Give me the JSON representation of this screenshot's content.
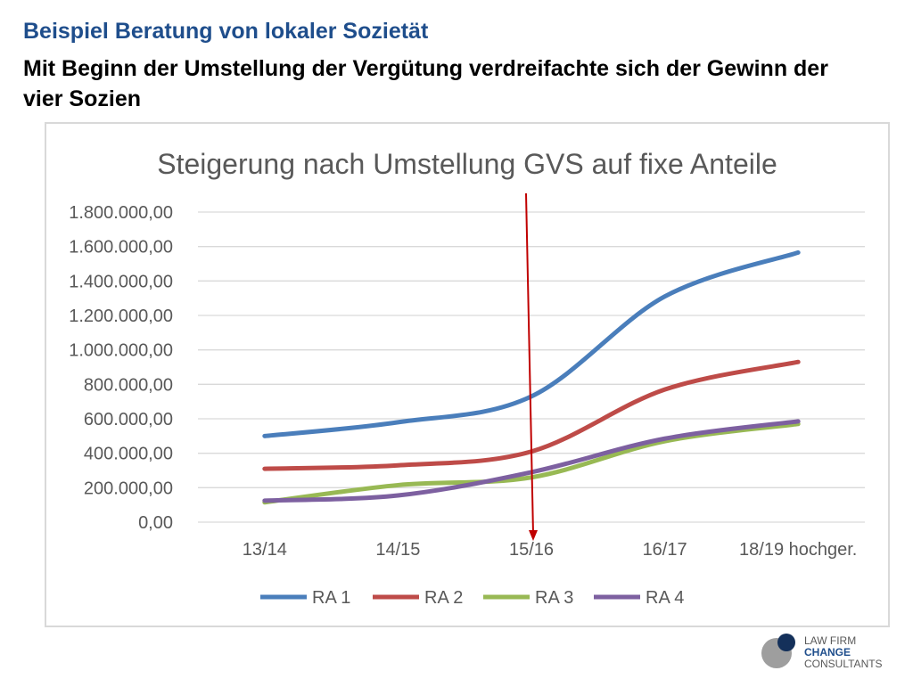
{
  "slide": {
    "title": "Beispiel Beratung von lokaler Sozietät",
    "subtitle": "Mit Beginn der Umstellung der Vergütung verdreifachte sich der Gewinn der vier Sozien"
  },
  "logo": {
    "line1": "LAW FIRM",
    "line2": "CHANGE",
    "line3": "CONSULTANTS"
  },
  "chart_data": {
    "type": "line",
    "title": "Steigerung nach Umstellung GVS auf  fixe Anteile",
    "xlabel": "",
    "ylabel": "",
    "categories": [
      "13/14",
      "14/15",
      "15/16",
      "16/17",
      "18/19 hochger."
    ],
    "ylim": [
      0,
      1800000
    ],
    "yticks": [
      "0,00",
      "200.000,00",
      "400.000,00",
      "600.000,00",
      "800.000,00",
      "1.000.000,00",
      "1.200.000,00",
      "1.400.000,00",
      "1.600.000,00",
      "1.800.000,00"
    ],
    "grid": true,
    "legend": "bottom",
    "series": [
      {
        "name": "RA 1",
        "color": "#4a7ebb",
        "values": [
          500000,
          580000,
          730000,
          1310000,
          1565000
        ]
      },
      {
        "name": "RA 2",
        "color": "#be4b48",
        "values": [
          310000,
          330000,
          410000,
          770000,
          930000
        ]
      },
      {
        "name": "RA 3",
        "color": "#98b954",
        "values": [
          115000,
          215000,
          260000,
          470000,
          570000
        ]
      },
      {
        "name": "RA 4",
        "color": "#7d60a0",
        "values": [
          125000,
          155000,
          290000,
          485000,
          585000
        ]
      }
    ],
    "marker": {
      "type": "arrow",
      "at_category": "15/16",
      "color": "#c00000"
    }
  }
}
